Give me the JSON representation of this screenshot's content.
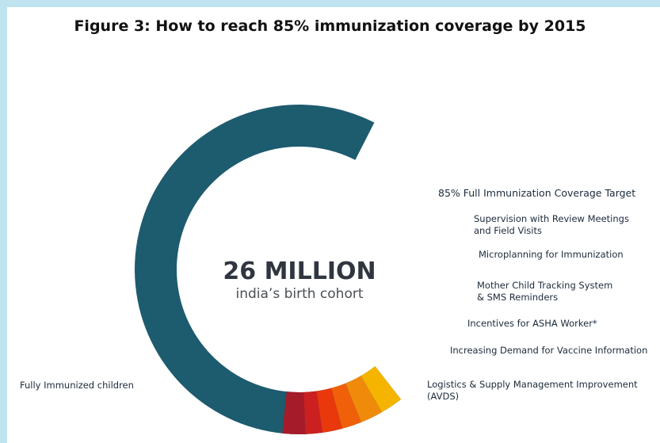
{
  "chart_data": {
    "type": "pie",
    "variant": "donut",
    "title": "Figure 3: How to reach 85% immunization coverage by 2015",
    "center_label": "26 MILLION",
    "center_sublabel": "india’s birth cohort",
    "target_label": "85% Full Immunization Coverage Target",
    "slices": [
      {
        "label": "Fully Immunized children",
        "color": "#1d5b6e"
      },
      {
        "label": "Logistics & Supply Management Improvement (AVDS)",
        "label_lines": [
          "Logistics & Supply Management Improvement",
          "(AVDS)"
        ],
        "color": "#f5b400"
      },
      {
        "label": "Increasing Demand for Vaccine Information",
        "label_lines": [
          "Increasing Demand for Vaccine Information"
        ],
        "color": "#f08a0a"
      },
      {
        "label": "Incentives for ASHA Worker*",
        "label_lines": [
          "Incentives for ASHA Worker*"
        ],
        "color": "#f0600a"
      },
      {
        "label": "Mother Child Tracking System & SMS Reminders",
        "label_lines": [
          "Mother Child Tracking System",
          "& SMS Reminders"
        ],
        "color": "#e8380c"
      },
      {
        "label": "Microplanning for Immunization",
        "label_lines": [
          "Microplanning for Immunization"
        ],
        "color": "#cc2020"
      },
      {
        "label": "Supervision with Review Meetings and Field Visits",
        "label_lines": [
          "Supervision with Review Meetings",
          "and Field Visits"
        ],
        "color": "#a51b2a"
      }
    ]
  }
}
